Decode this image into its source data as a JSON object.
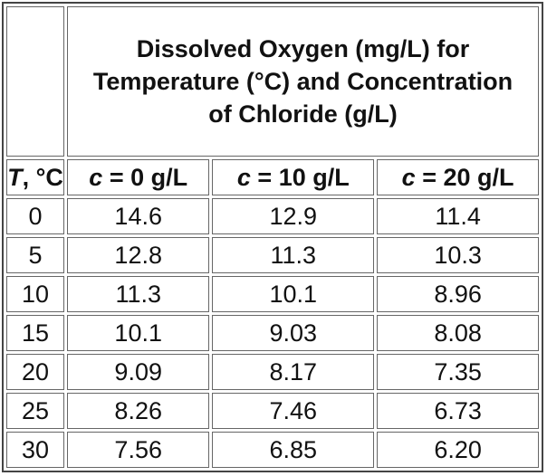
{
  "table": {
    "title_lines": [
      "Dissolved Oxygen (mg/L) for",
      "Temperature (°C) and Concentration",
      "of Chloride (g/L)"
    ],
    "headers": {
      "temp": {
        "var": "T",
        "rest": ", °C"
      },
      "c0": {
        "var": "c",
        "rest": " = 0 g/L"
      },
      "c10": {
        "var": "c",
        "rest": " = 10 g/L"
      },
      "c20": {
        "var": "c",
        "rest": " = 20 g/L"
      }
    },
    "rows": [
      {
        "t": "0",
        "c0": "14.6",
        "c10": "12.9",
        "c20": "11.4"
      },
      {
        "t": "5",
        "c0": "12.8",
        "c10": "11.3",
        "c20": "10.3"
      },
      {
        "t": "10",
        "c0": "11.3",
        "c10": "10.1",
        "c20": "8.96"
      },
      {
        "t": "15",
        "c0": "10.1",
        "c10": "9.03",
        "c20": "8.08"
      },
      {
        "t": "20",
        "c0": "9.09",
        "c10": "8.17",
        "c20": "7.35"
      },
      {
        "t": "25",
        "c0": "8.26",
        "c10": "7.46",
        "c20": "6.73"
      },
      {
        "t": "30",
        "c0": "7.56",
        "c10": "6.85",
        "c20": "6.20"
      }
    ]
  }
}
